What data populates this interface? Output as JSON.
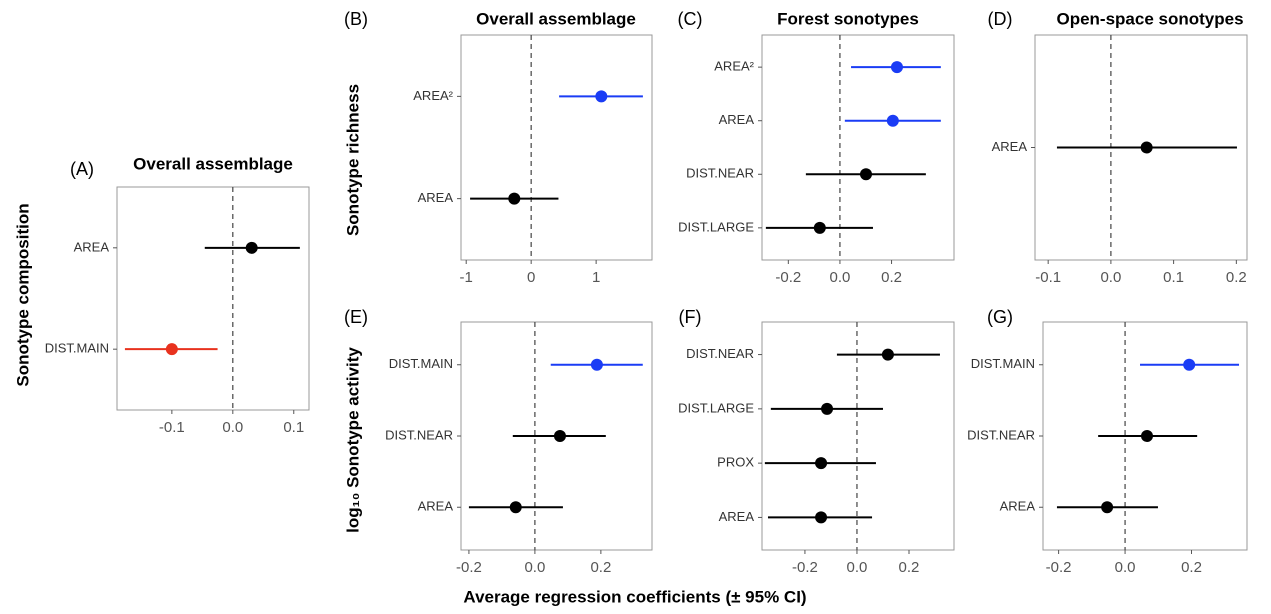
{
  "chart_data": [
    {
      "type": "forest",
      "panel": "(A)",
      "title": "Overall assemblage",
      "categories": [
        "AREA",
        "DIST.MAIN"
      ],
      "values": [
        0.031,
        -0.1
      ],
      "lower": [
        -0.046,
        -0.177
      ],
      "upper": [
        0.11,
        -0.025
      ],
      "colors": [
        "#000000",
        "#e8321e"
      ],
      "xlim": [
        -0.19,
        0.125
      ],
      "xticks": [
        -0.1,
        {
          "value": 0,
          "label": "0.0"
        },
        0.1
      ]
    },
    {
      "type": "forest",
      "panel": "(B)",
      "title": "Overall assemblage",
      "categories": [
        "AREA²",
        "AREA"
      ],
      "values": [
        1.08,
        -0.26
      ],
      "lower": [
        0.43,
        -0.94
      ],
      "upper": [
        1.72,
        0.42
      ],
      "colors": [
        "#1a3cf5",
        "#000000"
      ],
      "xlim": [
        -1.08,
        1.86
      ],
      "xticks": [
        -1,
        0,
        1
      ]
    },
    {
      "type": "forest",
      "panel": "(C)",
      "title": "Forest sonotypes",
      "categories": [
        "AREA²",
        "AREA",
        "DIST.NEAR",
        "DIST.LARGE"
      ],
      "values": [
        0.221,
        0.205,
        0.101,
        -0.078
      ],
      "lower": [
        0.043,
        0.019,
        -0.132,
        -0.287
      ],
      "upper": [
        0.391,
        0.391,
        0.333,
        0.128
      ],
      "colors": [
        "#1a3cf5",
        "#1a3cf5",
        "#000000",
        "#000000"
      ],
      "xlim": [
        -0.302,
        0.442
      ],
      "xticks": [
        -0.2,
        {
          "value": 0,
          "label": "0.0"
        },
        0.2
      ]
    },
    {
      "type": "forest",
      "panel": "(D)",
      "title": "Open-space sonotypes",
      "categories": [
        "AREA"
      ],
      "values": [
        0.057
      ],
      "lower": [
        -0.086
      ],
      "upper": [
        0.201
      ],
      "colors": [
        "#000000"
      ],
      "xlim": [
        -0.121,
        0.217
      ],
      "xticks": [
        -0.1,
        {
          "value": 0,
          "label": "0.0"
        },
        0.1,
        0.2
      ]
    },
    {
      "type": "forest",
      "panel": "(E)",
      "categories": [
        "DIST.MAIN",
        "DIST.NEAR",
        "AREA"
      ],
      "values": [
        0.188,
        0.076,
        -0.058
      ],
      "lower": [
        0.048,
        -0.067,
        -0.2
      ],
      "upper": [
        0.327,
        0.215,
        0.085
      ],
      "colors": [
        "#1a3cf5",
        "#000000",
        "#000000"
      ],
      "xlim": [
        -0.224,
        0.355
      ],
      "xticks": [
        -0.2,
        {
          "value": 0,
          "label": "0.0"
        },
        0.2
      ]
    },
    {
      "type": "forest",
      "panel": "(F)",
      "categories": [
        "DIST.NEAR",
        "DIST.LARGE",
        "PROX",
        "AREA"
      ],
      "values": [
        0.119,
        -0.115,
        -0.138,
        -0.138
      ],
      "lower": [
        -0.077,
        -0.331,
        -0.354,
        -0.342
      ],
      "upper": [
        0.319,
        0.1,
        0.073,
        0.058
      ],
      "colors": [
        "#000000",
        "#000000",
        "#000000",
        "#000000"
      ],
      "xlim": [
        -0.365,
        0.373
      ],
      "xticks": [
        -0.2,
        {
          "value": 0,
          "label": "0.0"
        },
        0.2
      ]
    },
    {
      "type": "forest",
      "panel": "(G)",
      "categories": [
        "DIST.MAIN",
        "DIST.NEAR",
        "AREA"
      ],
      "values": [
        0.193,
        0.066,
        -0.054
      ],
      "lower": [
        0.045,
        -0.081,
        -0.205
      ],
      "upper": [
        0.343,
        0.217,
        0.099
      ],
      "colors": [
        "#1a3cf5",
        "#000000",
        "#000000"
      ],
      "xlim": [
        -0.247,
        0.367
      ],
      "xticks": [
        -0.2,
        {
          "value": 0,
          "label": "0.0"
        },
        0.2
      ]
    }
  ],
  "row_labels": [
    "Sonotype composition",
    "Sonotype richness",
    "log₁₀ Sonotype activity"
  ],
  "x_label": "Average regression coefficients (± 95% CI)"
}
